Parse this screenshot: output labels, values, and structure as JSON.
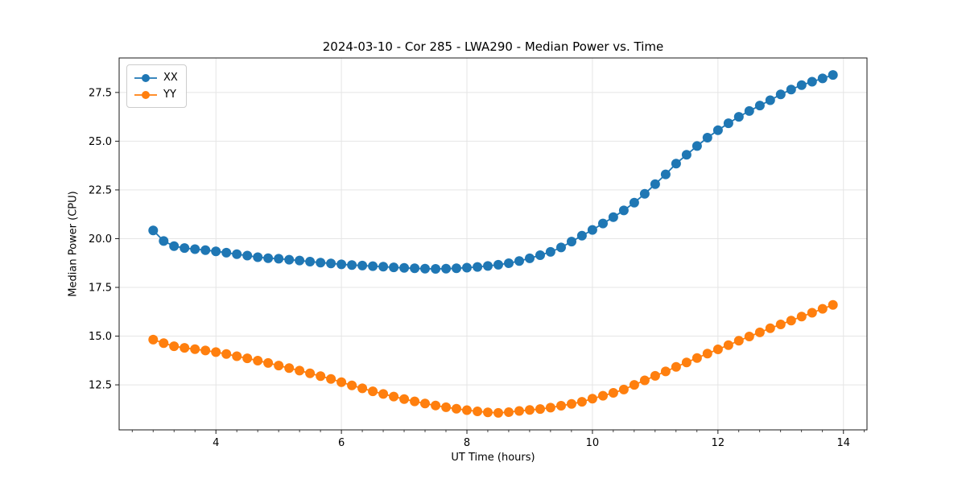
{
  "figure": {
    "background": "#ffffff"
  },
  "chart_data": {
    "type": "line",
    "title": "2024-03-10 - Cor 285 - LWA290 - Median Power vs. Time",
    "xlabel": "UT Time (hours)",
    "ylabel": "Median Power (CPU)",
    "x": [
      3.0,
      3.167,
      3.333,
      3.5,
      3.667,
      3.833,
      4.0,
      4.167,
      4.333,
      4.5,
      4.667,
      4.833,
      5.0,
      5.167,
      5.333,
      5.5,
      5.667,
      5.833,
      6.0,
      6.167,
      6.333,
      6.5,
      6.667,
      6.833,
      7.0,
      7.167,
      7.333,
      7.5,
      7.667,
      7.833,
      8.0,
      8.167,
      8.333,
      8.5,
      8.667,
      8.833,
      9.0,
      9.167,
      9.333,
      9.5,
      9.667,
      9.833,
      10.0,
      10.167,
      10.333,
      10.5,
      10.667,
      10.833,
      11.0,
      11.167,
      11.333,
      11.5,
      11.667,
      11.833,
      12.0,
      12.167,
      12.333,
      12.5,
      12.667,
      12.833,
      13.0,
      13.167,
      13.333,
      13.5,
      13.667,
      13.833
    ],
    "series": [
      {
        "name": "XX",
        "color": "#1f77b4",
        "marker": "circle",
        "values": [
          20.42,
          19.88,
          19.62,
          19.52,
          19.46,
          19.41,
          19.35,
          19.28,
          19.2,
          19.13,
          19.05,
          19.0,
          18.97,
          18.92,
          18.88,
          18.82,
          18.77,
          18.73,
          18.68,
          18.65,
          18.62,
          18.59,
          18.56,
          18.53,
          18.5,
          18.48,
          18.46,
          18.45,
          18.46,
          18.48,
          18.51,
          18.55,
          18.6,
          18.66,
          18.74,
          18.85,
          18.99,
          19.15,
          19.32,
          19.55,
          19.85,
          20.15,
          20.45,
          20.78,
          21.1,
          21.45,
          21.85,
          22.3,
          22.8,
          23.3,
          23.85,
          24.3,
          24.75,
          25.18,
          25.56,
          25.92,
          26.25,
          26.55,
          26.83,
          27.1,
          27.4,
          27.65,
          27.88,
          28.05,
          28.22,
          28.4
        ]
      },
      {
        "name": "YY",
        "color": "#ff7f0e",
        "marker": "circle",
        "values": [
          14.82,
          14.64,
          14.48,
          14.4,
          14.33,
          14.26,
          14.18,
          14.08,
          13.97,
          13.86,
          13.74,
          13.62,
          13.49,
          13.36,
          13.23,
          13.09,
          12.95,
          12.8,
          12.64,
          12.47,
          12.32,
          12.17,
          12.03,
          11.9,
          11.77,
          11.65,
          11.54,
          11.44,
          11.35,
          11.27,
          11.2,
          11.14,
          11.09,
          11.06,
          11.1,
          11.16,
          11.21,
          11.26,
          11.33,
          11.43,
          11.52,
          11.63,
          11.79,
          11.94,
          12.09,
          12.26,
          12.5,
          12.73,
          12.96,
          13.19,
          13.42,
          13.65,
          13.88,
          14.1,
          14.32,
          14.54,
          14.76,
          14.98,
          15.19,
          15.4,
          15.6,
          15.8,
          16.0,
          16.2,
          16.4,
          16.6
        ]
      }
    ],
    "xlim": [
      2.458,
      14.375
    ],
    "ylim": [
      10.19,
      29.27
    ],
    "x_ticks": [
      4,
      6,
      8,
      10,
      12,
      14
    ],
    "x_minor_tick_step": 0.3333,
    "y_ticks": [
      12.5,
      15.0,
      17.5,
      20.0,
      22.5,
      25.0,
      27.5
    ],
    "grid": true,
    "grid_color": "#e5e5e5",
    "spine_color": "#1a1a1a",
    "legend": {
      "position": "upper-left",
      "entries": [
        "XX",
        "YY"
      ]
    }
  }
}
